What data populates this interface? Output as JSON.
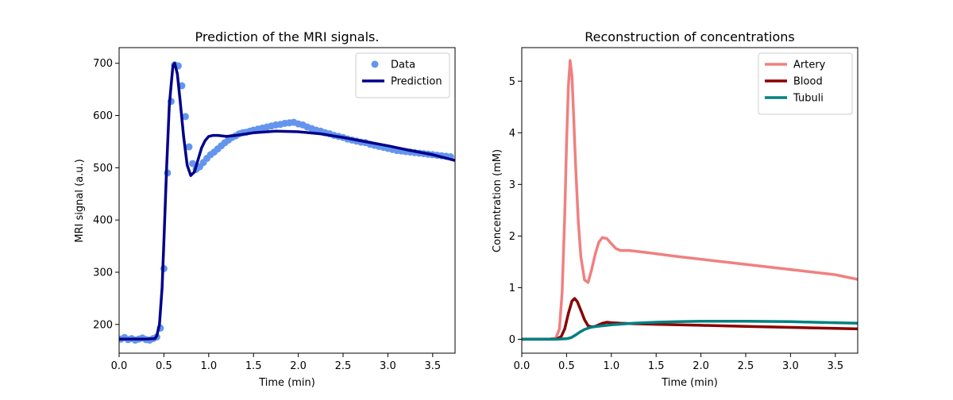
{
  "chart_data": [
    {
      "type": "scatter+line",
      "title": "Prediction of the MRI signals.",
      "xlabel": "Time (min)",
      "ylabel": "MRI signal (a.u.)",
      "xlim": [
        0,
        3.75
      ],
      "ylim": [
        145,
        730
      ],
      "xticks": [
        0.0,
        0.5,
        1.0,
        1.5,
        2.0,
        2.5,
        3.0,
        3.5
      ],
      "xtick_labels": [
        "0.0",
        "0.5",
        "1.0",
        "1.5",
        "2.0",
        "2.5",
        "3.0",
        "3.5"
      ],
      "yticks": [
        200,
        300,
        400,
        500,
        600,
        700
      ],
      "ytick_labels": [
        "200",
        "300",
        "400",
        "500",
        "600",
        "700"
      ],
      "legend_position": "top-right",
      "series": [
        {
          "name": "Data",
          "kind": "scatter",
          "color": "#6495ed",
          "x": [
            0.02,
            0.06,
            0.1,
            0.14,
            0.18,
            0.22,
            0.26,
            0.3,
            0.34,
            0.38,
            0.42,
            0.46,
            0.5,
            0.54,
            0.58,
            0.62,
            0.66,
            0.7,
            0.74,
            0.78,
            0.82,
            0.86,
            0.9,
            0.94,
            0.98,
            1.02,
            1.06,
            1.1,
            1.14,
            1.18,
            1.22,
            1.26,
            1.3,
            1.34,
            1.38,
            1.42,
            1.46,
            1.5,
            1.55,
            1.6,
            1.65,
            1.7,
            1.75,
            1.8,
            1.85,
            1.9,
            1.95,
            2.0,
            2.05,
            2.1,
            2.15,
            2.2,
            2.25,
            2.3,
            2.35,
            2.4,
            2.45,
            2.5,
            2.55,
            2.6,
            2.65,
            2.7,
            2.75,
            2.8,
            2.85,
            2.9,
            2.95,
            3.0,
            3.05,
            3.1,
            3.15,
            3.2,
            3.25,
            3.3,
            3.35,
            3.4,
            3.45,
            3.5,
            3.55,
            3.6,
            3.65,
            3.7
          ],
          "y": [
            172,
            175,
            171,
            173,
            170,
            172,
            174,
            171,
            170,
            173,
            176,
            193,
            307,
            490,
            627,
            697,
            695,
            657,
            598,
            540,
            508,
            497,
            502,
            510,
            518,
            525,
            530,
            536,
            542,
            548,
            553,
            558,
            561,
            565,
            567,
            568,
            570,
            572,
            574,
            576,
            578,
            580,
            582,
            583,
            585,
            586,
            587,
            584,
            582,
            578,
            575,
            572,
            570,
            567,
            565,
            562,
            560,
            558,
            555,
            553,
            551,
            549,
            548,
            545,
            543,
            541,
            539,
            537,
            535,
            533,
            532,
            531,
            530,
            529,
            528,
            527,
            526,
            525,
            524,
            523,
            522,
            521
          ]
        },
        {
          "name": "Prediction",
          "kind": "line",
          "color": "#00008b",
          "x": [
            0.0,
            0.1,
            0.2,
            0.3,
            0.4,
            0.42,
            0.45,
            0.48,
            0.5,
            0.53,
            0.56,
            0.6,
            0.62,
            0.65,
            0.68,
            0.72,
            0.76,
            0.8,
            0.84,
            0.88,
            0.92,
            0.96,
            1.0,
            1.05,
            1.1,
            1.2,
            1.3,
            1.5,
            1.75,
            2.0,
            2.25,
            2.5,
            2.75,
            3.0,
            3.25,
            3.5,
            3.75
          ],
          "y": [
            172,
            172,
            172,
            172,
            173,
            178,
            200,
            270,
            360,
            500,
            620,
            695,
            700,
            680,
            630,
            560,
            505,
            485,
            492,
            515,
            538,
            552,
            560,
            562,
            562,
            560,
            562,
            567,
            570,
            569,
            565,
            558,
            550,
            542,
            533,
            525,
            514
          ]
        }
      ]
    },
    {
      "type": "line",
      "title": "Reconstruction of concentrations",
      "xlabel": "Time (min)",
      "ylabel": "Concentration (mM)",
      "xlim": [
        0,
        3.75
      ],
      "ylim": [
        -0.27,
        5.65
      ],
      "xticks": [
        0.0,
        0.5,
        1.0,
        1.5,
        2.0,
        2.5,
        3.0,
        3.5
      ],
      "xtick_labels": [
        "0.0",
        "0.5",
        "1.0",
        "1.5",
        "2.0",
        "2.5",
        "3.0",
        "3.5"
      ],
      "yticks": [
        0,
        1,
        2,
        3,
        4,
        5
      ],
      "ytick_labels": [
        "0",
        "1",
        "2",
        "3",
        "4",
        "5"
      ],
      "legend_position": "top-right",
      "series": [
        {
          "name": "Artery",
          "color": "#f08080",
          "x": [
            0.0,
            0.3,
            0.38,
            0.42,
            0.45,
            0.48,
            0.5,
            0.52,
            0.54,
            0.56,
            0.58,
            0.6,
            0.63,
            0.66,
            0.7,
            0.74,
            0.78,
            0.82,
            0.86,
            0.9,
            0.95,
            1.0,
            1.05,
            1.1,
            1.2,
            1.4,
            1.75,
            2.0,
            2.5,
            3.0,
            3.5,
            3.75
          ],
          "y": [
            0.0,
            0.0,
            0.02,
            0.2,
            0.9,
            2.4,
            3.8,
            4.9,
            5.4,
            5.1,
            4.3,
            3.4,
            2.3,
            1.6,
            1.15,
            1.1,
            1.35,
            1.65,
            1.88,
            1.97,
            1.95,
            1.85,
            1.76,
            1.72,
            1.72,
            1.68,
            1.6,
            1.55,
            1.45,
            1.35,
            1.25,
            1.16
          ]
        },
        {
          "name": "Blood",
          "color": "#8b0000",
          "x": [
            0.0,
            0.38,
            0.44,
            0.48,
            0.52,
            0.56,
            0.59,
            0.62,
            0.66,
            0.7,
            0.74,
            0.78,
            0.82,
            0.86,
            0.9,
            0.95,
            1.0,
            1.1,
            1.25,
            1.5,
            2.0,
            2.5,
            3.0,
            3.5,
            3.75
          ],
          "y": [
            0.0,
            0.0,
            0.05,
            0.2,
            0.5,
            0.74,
            0.79,
            0.73,
            0.56,
            0.38,
            0.26,
            0.24,
            0.25,
            0.28,
            0.31,
            0.33,
            0.32,
            0.31,
            0.3,
            0.29,
            0.27,
            0.25,
            0.23,
            0.21,
            0.2
          ]
        },
        {
          "name": "Tubuli",
          "color": "#008080",
          "x": [
            0.0,
            0.4,
            0.5,
            0.55,
            0.6,
            0.65,
            0.7,
            0.75,
            0.8,
            0.9,
            1.0,
            1.25,
            1.5,
            1.75,
            2.0,
            2.25,
            2.5,
            2.75,
            3.0,
            3.25,
            3.5,
            3.75
          ],
          "y": [
            0.0,
            0.0,
            0.01,
            0.03,
            0.08,
            0.14,
            0.19,
            0.22,
            0.24,
            0.26,
            0.28,
            0.31,
            0.33,
            0.34,
            0.35,
            0.35,
            0.35,
            0.345,
            0.34,
            0.33,
            0.32,
            0.31
          ]
        }
      ]
    }
  ]
}
